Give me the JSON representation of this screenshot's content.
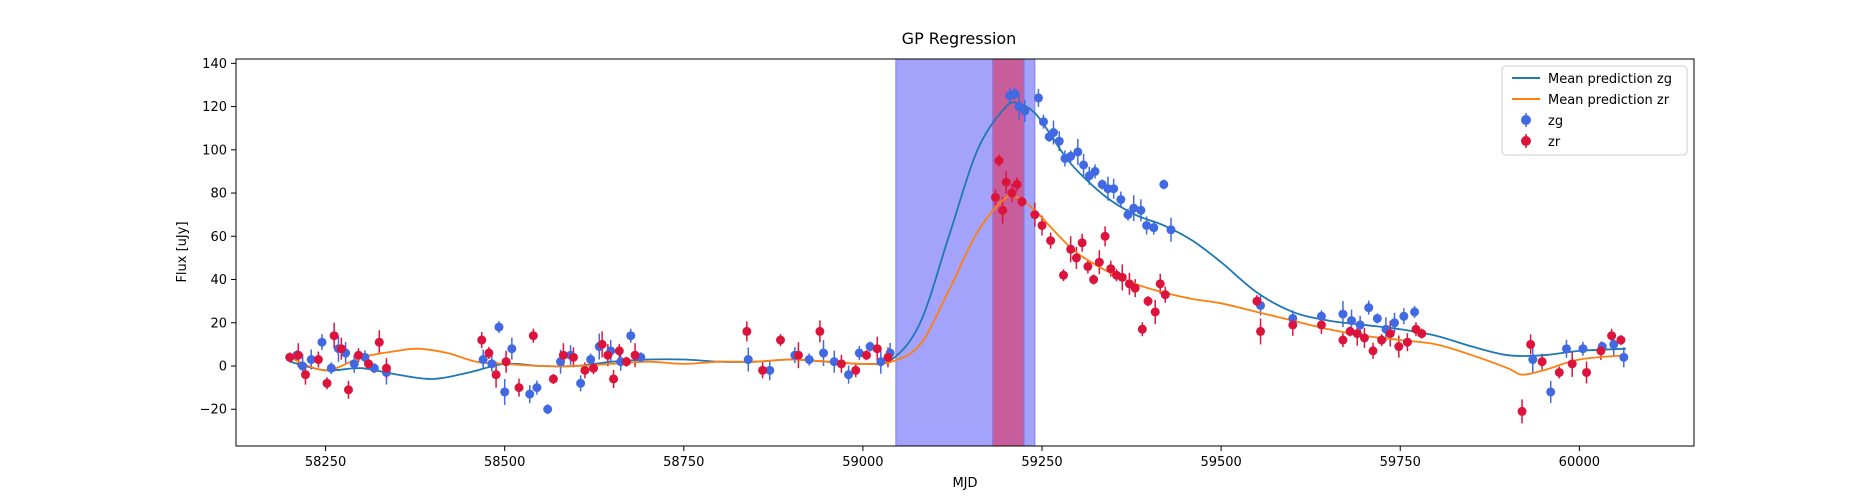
{
  "chart_data": {
    "type": "scatter",
    "title": "GP Regression",
    "xlabel": "MJD",
    "ylabel": "Flux [uJy]",
    "xlim": [
      58125,
      60160
    ],
    "ylim": [
      -37,
      142
    ],
    "xticks": [
      58250,
      58500,
      58750,
      59000,
      59250,
      59500,
      59750,
      60000
    ],
    "yticks": [
      -20,
      0,
      20,
      40,
      60,
      80,
      100,
      120,
      140
    ],
    "grid": false,
    "legend_position": "top-right",
    "shaded_regions": [
      {
        "x0": 59046,
        "x1": 59240,
        "color": "#a3a3fb"
      },
      {
        "x0": 59181,
        "x1": 59225,
        "color": "#c75d9a"
      }
    ],
    "lines": [
      {
        "name": "Mean prediction zg",
        "color": "#1f77b4",
        "x": [
          58200,
          58250,
          58300,
          58350,
          58400,
          58450,
          58500,
          58550,
          58600,
          58650,
          58700,
          58750,
          58800,
          58850,
          58900,
          58950,
          59000,
          59040,
          59080,
          59120,
          59160,
          59200,
          59220,
          59240,
          59260,
          59280,
          59300,
          59340,
          59380,
          59420,
          59460,
          59500,
          59550,
          59600,
          59650,
          59700,
          59750,
          59800,
          59850,
          59900,
          59950,
          60000,
          60065
        ],
        "y": [
          2,
          -2,
          -1,
          -4,
          -6,
          -3,
          1,
          0,
          0,
          2,
          3,
          3,
          2,
          2,
          3,
          2,
          1,
          3,
          20,
          60,
          100,
          120,
          121,
          117,
          108,
          98,
          90,
          78,
          70,
          65,
          58,
          48,
          34,
          25,
          21,
          19,
          17,
          14,
          9,
          5,
          5,
          7,
          8
        ]
      },
      {
        "name": "Mean prediction zr",
        "color": "#ff7f0e",
        "x": [
          58200,
          58250,
          58300,
          58350,
          58380,
          58420,
          58460,
          58500,
          58550,
          58600,
          58650,
          58700,
          58750,
          58800,
          58850,
          58900,
          58950,
          59000,
          59040,
          59080,
          59120,
          59160,
          59200,
          59220,
          59240,
          59260,
          59280,
          59300,
          59340,
          59380,
          59420,
          59460,
          59500,
          59550,
          59600,
          59650,
          59700,
          59750,
          59800,
          59850,
          59900,
          59920,
          59950,
          60000,
          60065
        ],
        "y": [
          4,
          -2,
          4,
          7,
          8,
          6,
          2,
          1,
          0,
          0,
          1,
          2,
          1,
          2,
          2,
          3,
          2,
          1,
          2,
          10,
          35,
          62,
          78,
          77,
          72,
          65,
          58,
          52,
          44,
          38,
          34,
          31,
          29,
          25,
          21,
          17,
          14,
          12,
          10,
          5,
          -1,
          -4,
          -2,
          3,
          5
        ]
      }
    ],
    "series": [
      {
        "name": "zg",
        "color": "#4169e1",
        "x": [
          58210,
          58218,
          58230,
          58245,
          58258,
          58268,
          58278,
          58290,
          58305,
          58318,
          58335,
          58470,
          58482,
          58492,
          58500,
          58510,
          58535,
          58545,
          58560,
          58578,
          58592,
          58606,
          58620,
          58632,
          58648,
          58662,
          58676,
          58690,
          58840,
          58870,
          58905,
          58925,
          58945,
          58960,
          58980,
          58995,
          59010,
          59025,
          59038,
          59205,
          59212,
          59218,
          59226,
          59245,
          59252,
          59260,
          59266,
          59274,
          59282,
          59290,
          59300,
          59308,
          59316,
          59324,
          59334,
          59342,
          59350,
          59360,
          59370,
          59378,
          59388,
          59396,
          59406,
          59420,
          59430,
          59555,
          59600,
          59640,
          59670,
          59682,
          59694,
          59706,
          59718,
          59730,
          59742,
          59755,
          59770,
          59935,
          59960,
          59982,
          60005,
          60032,
          60048,
          60062
        ],
        "y": [
          5,
          0,
          3,
          11,
          -1,
          8,
          6,
          1,
          4,
          -1,
          -3,
          3,
          1,
          18,
          -12,
          8,
          -13,
          -10,
          -20,
          2,
          5,
          -8,
          3,
          9,
          7,
          2,
          14,
          4,
          3,
          -2,
          5,
          3,
          6,
          2,
          -4,
          6,
          9,
          2,
          6,
          125,
          126,
          120,
          118,
          124,
          113,
          106,
          108,
          104,
          96,
          97,
          99,
          93,
          88,
          90,
          84,
          82,
          82,
          77,
          70,
          73,
          72,
          65,
          64,
          84,
          63,
          28,
          22,
          23,
          24,
          21,
          19,
          27,
          22,
          17,
          20,
          23,
          25,
          3,
          -12,
          8,
          8,
          9,
          10,
          4
        ]
      },
      {
        "name": "zr",
        "color": "#dc143c",
        "x": [
          58200,
          58212,
          58222,
          58240,
          58252,
          58262,
          58272,
          58282,
          58296,
          58310,
          58325,
          58335,
          58468,
          58478,
          58488,
          58502,
          58520,
          58540,
          58568,
          58582,
          58596,
          58612,
          58624,
          58636,
          58644,
          58652,
          58660,
          58670,
          58682,
          58838,
          58860,
          58885,
          58910,
          58940,
          58970,
          58990,
          59005,
          59020,
          59035,
          59185,
          59190,
          59195,
          59200,
          59208,
          59215,
          59222,
          59240,
          59250,
          59262,
          59280,
          59290,
          59298,
          59306,
          59314,
          59322,
          59330,
          59338,
          59346,
          59354,
          59362,
          59372,
          59380,
          59390,
          59398,
          59408,
          59415,
          59422,
          59550,
          59555,
          59600,
          59640,
          59670,
          59680,
          59690,
          59700,
          59712,
          59724,
          59736,
          59748,
          59760,
          59772,
          59780,
          59920,
          59932,
          59948,
          59972,
          59990,
          60010,
          60030,
          60045,
          60058
        ],
        "y": [
          4,
          5,
          -4,
          3,
          -8,
          14,
          8,
          -11,
          5,
          1,
          11,
          -1,
          12,
          6,
          -4,
          2,
          -10,
          14,
          -6,
          5,
          4,
          -2,
          -1,
          10,
          5,
          -6,
          7,
          2,
          5,
          16,
          -2,
          12,
          5,
          16,
          1,
          -2,
          5,
          8,
          4,
          78,
          95,
          72,
          85,
          80,
          84,
          76,
          70,
          65,
          58,
          42,
          54,
          50,
          57,
          46,
          40,
          48,
          60,
          45,
          42,
          41,
          38,
          36,
          17,
          30,
          25,
          38,
          33,
          30,
          16,
          19,
          19,
          12,
          16,
          15,
          13,
          7,
          12,
          15,
          9,
          11,
          17,
          15,
          -21,
          10,
          2,
          -3,
          1,
          -3,
          7,
          14,
          12
        ]
      }
    ]
  }
}
